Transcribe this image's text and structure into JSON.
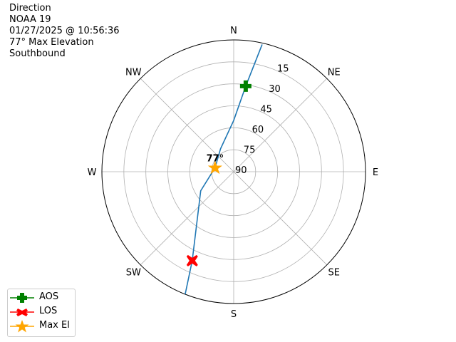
{
  "title_lines": [
    "Direction",
    "NOAA 19",
    "01/27/2025 @ 10:56:36",
    "77° Max Elevation",
    "Southbound"
  ],
  "chart_data": {
    "type": "polar",
    "angular_ticks": [
      "N",
      "NE",
      "E",
      "SE",
      "S",
      "SW",
      "W",
      "NW"
    ],
    "radial_tick_labels": [
      "90",
      "75",
      "60",
      "45",
      "30",
      "15"
    ],
    "radial_axis": "elevation (degrees), 90 at center, 0 at edge",
    "grid": true,
    "track": {
      "color": "#1f77b4",
      "points": [
        {
          "az": 12.6,
          "el": 1
        },
        {
          "az": 8,
          "el": 31
        },
        {
          "az": 360,
          "el": 55
        },
        {
          "az": 330,
          "el": 72
        },
        {
          "az": 282,
          "el": 77
        },
        {
          "az": 240,
          "el": 64
        },
        {
          "az": 205,
          "el": 23
        },
        {
          "az": 201.6,
          "el": 0
        }
      ]
    },
    "markers": [
      {
        "name": "AOS",
        "az": 8,
        "el": 31,
        "color": "#008000",
        "shape": "plus"
      },
      {
        "name": "LOS",
        "az": 205,
        "el": 23,
        "color": "#ff0000",
        "shape": "x"
      },
      {
        "name": "Max El",
        "az": 282,
        "el": 77,
        "color": "#ffa500",
        "shape": "star"
      }
    ],
    "annotation": "77°",
    "legend_position": "lower-left"
  }
}
